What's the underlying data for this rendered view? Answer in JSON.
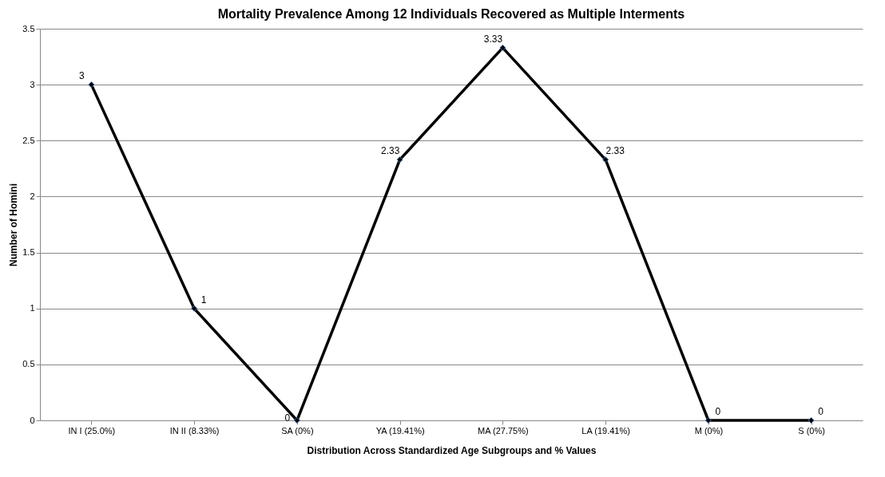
{
  "chart_data": {
    "type": "line",
    "title": "Mortality Prevalence Among 12 Individuals Recovered as Multiple Interments",
    "xlabel": "Distribution Across Standardized Age Subgroups and % Values",
    "ylabel": "Number of Homini",
    "categories": [
      "IN I  (25.0%)",
      "IN II  (8.33%)",
      "SA  (0%)",
      "YA  (19.41%)",
      "MA  (27.75%)",
      "LA  (19.41%)",
      "M  (0%)",
      "S (0%)"
    ],
    "series": [
      {
        "color": "#000000",
        "values": [
          3,
          1,
          0,
          2.33,
          3.33,
          2.33,
          0,
          0
        ]
      }
    ],
    "ylim": [
      0,
      3.5
    ],
    "yticks": [
      {
        "value": 0,
        "label": "0"
      },
      0.5,
      {
        "value": 1,
        "label": "1"
      },
      1.5,
      {
        "value": 2,
        "label": "2"
      },
      2.5,
      {
        "value": 3,
        "label": "3"
      },
      3.5
    ],
    "grid": "y",
    "marker": "diamond",
    "line_style": "solid",
    "data_labels": true
  }
}
